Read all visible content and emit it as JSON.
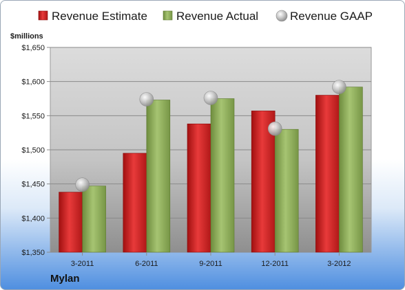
{
  "company": "Mylan",
  "chart_data": {
    "type": "bar",
    "ylabel": "$millions",
    "ylim": [
      1350,
      1650
    ],
    "yticks": [
      1350,
      1400,
      1450,
      1500,
      1550,
      1600,
      1650
    ],
    "ytick_labels": [
      "$1,350",
      "$1,400",
      "$1,450",
      "$1,500",
      "$1,550",
      "$1,600",
      "$1,650"
    ],
    "categories": [
      "3-2011",
      "6-2011",
      "9-2011",
      "12-2011",
      "3-2012"
    ],
    "grid": true,
    "legend_position": "top",
    "series": [
      {
        "name": "Revenue Estimate",
        "kind": "bar",
        "color": "#d42020",
        "values": [
          1438,
          1495,
          1538,
          1557,
          1580
        ]
      },
      {
        "name": "Revenue Actual",
        "kind": "bar",
        "color": "#8aab55",
        "values": [
          1447,
          1573,
          1575,
          1530,
          1592
        ]
      },
      {
        "name": "Revenue GAAP",
        "kind": "marker",
        "color": "#b4b4b4",
        "values": [
          1449,
          1574,
          1576,
          1531,
          1592
        ]
      }
    ]
  }
}
